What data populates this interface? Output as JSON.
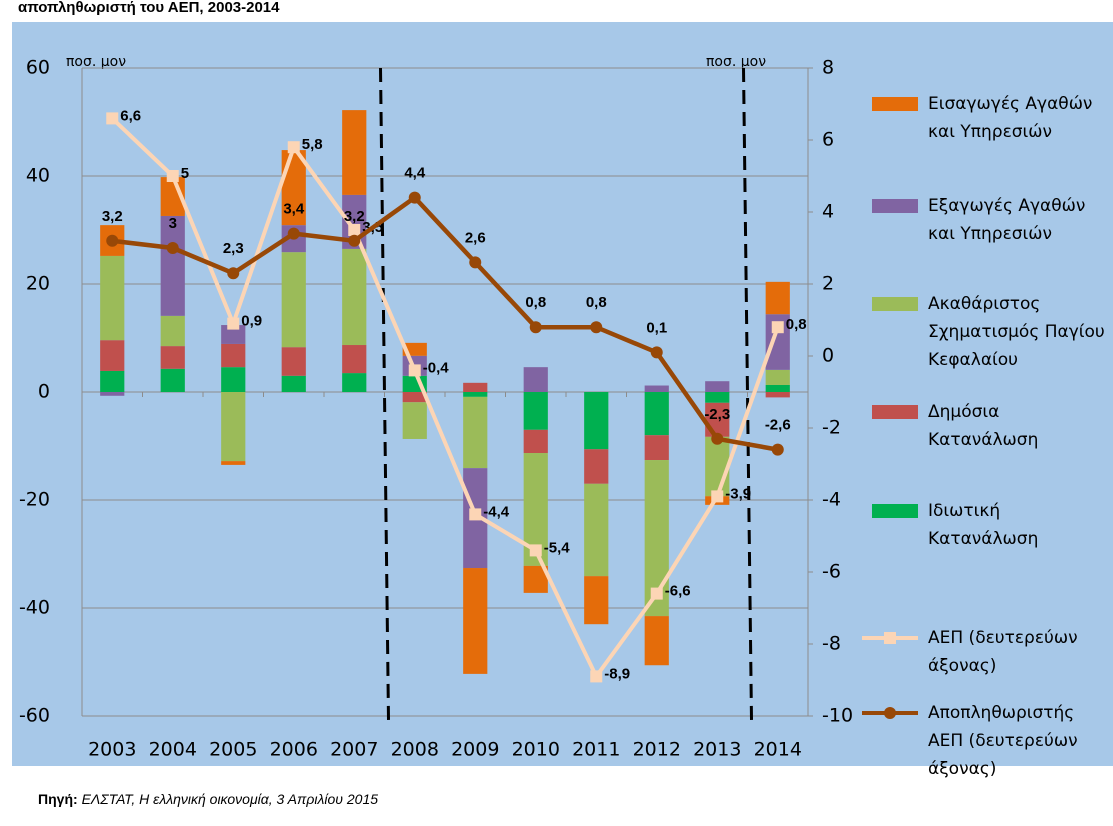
{
  "chart_data": {
    "type": "bar",
    "stacked": true,
    "title": "αποπληθωριστή του ΑΕΠ, 2003-2014",
    "y_unit_label": "ποσ. μον",
    "y2_unit_label": "ποσ. μον",
    "source_label": "Πηγή:",
    "source_text": "ΕΛΣΤΑΤ, Η ελληνική οικονομία, 3 Απριλίου 2015",
    "categories": [
      "2003",
      "2004",
      "2005",
      "2006",
      "2007",
      "2008",
      "2009",
      "2010",
      "2011",
      "2012",
      "2013",
      "2014"
    ],
    "ylim": [
      -60,
      60
    ],
    "yticks": [
      60,
      40,
      20,
      0,
      -20,
      -40,
      -60
    ],
    "y2lim": [
      -10,
      8
    ],
    "y2ticks": [
      8,
      6,
      4,
      2,
      0,
      -2,
      -4,
      -6,
      -8,
      -10
    ],
    "grid": true,
    "legend": "right",
    "series": [
      {
        "name": "Ιδιωτική Κατανάλωση",
        "color": "#00b050",
        "values": [
          3.9,
          4.3,
          4.6,
          3.0,
          3.5,
          3.0,
          -0.9,
          -7.0,
          -10.6,
          -8.0,
          -2.0,
          1.3
        ]
      },
      {
        "name": "Δημόσια Κατανάλωση",
        "color": "#c0504d",
        "values": [
          5.7,
          4.2,
          4.3,
          5.3,
          5.2,
          -1.9,
          1.7,
          -4.3,
          -6.4,
          -4.6,
          -6.3,
          -1.0
        ]
      },
      {
        "name": "Ακαθάριστος Σχηματισμός Παγίου Κεφαλαίου",
        "color": "#9bbb59",
        "values": [
          15.6,
          5.6,
          -12.8,
          17.6,
          17.8,
          -6.8,
          -13.2,
          -20.9,
          -17.1,
          -28.9,
          -11.0,
          2.8
        ]
      },
      {
        "name": "Εξαγωγές Αγαθών και Υπηρεσιών",
        "color": "#8064a2",
        "values": [
          -0.7,
          18.5,
          3.5,
          5.0,
          10.0,
          3.7,
          -18.5,
          4.6,
          0,
          1.2,
          2.0,
          10.3
        ]
      },
      {
        "name": "Εισαγωγές Αγαθών και Υπηρεσιών",
        "color": "#e46c0a",
        "values": [
          5.7,
          7.2,
          -0.7,
          13.9,
          15.7,
          2.4,
          -19.6,
          -5.0,
          -8.9,
          -9.1,
          -1.6,
          6.0
        ]
      },
      {
        "name": "ΑΕΠ (δευτερεύων άξονας)",
        "type": "line",
        "axis": "y2",
        "marker": "square",
        "color": "#fcd5b5",
        "values": [
          6.6,
          5,
          0.9,
          5.8,
          3.5,
          -0.4,
          -4.4,
          -5.4,
          -8.9,
          -6.6,
          -3.9,
          0.8
        ],
        "value_labels": [
          "6,6",
          "5",
          "0,9",
          "5,8",
          "3,5",
          "-0,4",
          "-4,4",
          "-5,4",
          "-8,9",
          "-6,6",
          "-3,9",
          "0,8"
        ]
      },
      {
        "name": "Αποπληθωριστής ΑΕΠ (δευτερεύων άξονας)",
        "type": "line",
        "axis": "y2",
        "marker": "circle",
        "color": "#984807",
        "values": [
          3.2,
          3,
          2.3,
          3.4,
          3.2,
          4.4,
          2.6,
          0.8,
          0.8,
          0.1,
          -2.3,
          -2.6
        ],
        "value_labels": [
          "3,2",
          "3",
          "2,3",
          "3,4",
          "3,2",
          "4,4",
          "2,6",
          "0,8",
          "0,8",
          "0,1",
          "-2,3",
          "-2,6"
        ]
      }
    ]
  }
}
